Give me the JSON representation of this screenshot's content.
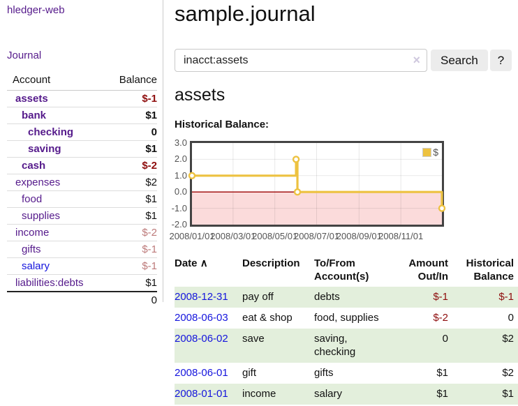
{
  "app": {
    "brand": "hledger-web",
    "nav_journal": "Journal"
  },
  "colors": {
    "link_purple": "#551a8b",
    "link_blue": "#1414dd",
    "negative": "#8e0d0d",
    "negative_muted": "#bd7a7a",
    "row_stripe_green": "#e3efdc",
    "accent_gold": "#edc240",
    "negative_band_pink": "#fbdbdb",
    "zero_line_red": "#9b0000",
    "tick_gray": "#545454"
  },
  "sidebar": {
    "columns": {
      "account": "Account",
      "balance": "Balance"
    },
    "accounts": [
      {
        "name": "assets",
        "level": 1,
        "bold": true,
        "link": "purple",
        "balance": "$-1",
        "balance_style": "neg-strong"
      },
      {
        "name": "bank",
        "level": 2,
        "bold": true,
        "link": "purple",
        "balance": "$1",
        "balance_style": "normal"
      },
      {
        "name": "checking",
        "level": 3,
        "bold": true,
        "link": "purple",
        "balance": "0",
        "balance_style": "normal"
      },
      {
        "name": "saving",
        "level": 3,
        "bold": true,
        "link": "purple",
        "balance": "$1",
        "balance_style": "normal"
      },
      {
        "name": "cash",
        "level": 2,
        "bold": true,
        "link": "purple",
        "balance": "$-2",
        "balance_style": "neg-strong"
      },
      {
        "name": "expenses",
        "level": 1,
        "bold": false,
        "link": "purple",
        "balance": "$2",
        "balance_style": "normal"
      },
      {
        "name": "food",
        "level": 2,
        "bold": false,
        "link": "purple",
        "balance": "$1",
        "balance_style": "normal"
      },
      {
        "name": "supplies",
        "level": 2,
        "bold": false,
        "link": "purple",
        "balance": "$1",
        "balance_style": "normal"
      },
      {
        "name": "income",
        "level": 1,
        "bold": false,
        "link": "purple",
        "balance": "$-2",
        "balance_style": "neg-muted"
      },
      {
        "name": "gifts",
        "level": 2,
        "bold": false,
        "link": "purple",
        "balance": "$-1",
        "balance_style": "neg-muted"
      },
      {
        "name": "salary",
        "level": 2,
        "bold": false,
        "link": "blue",
        "balance": "$-1",
        "balance_style": "neg-muted"
      },
      {
        "name": "liabilities:debts",
        "level": 1,
        "bold": false,
        "link": "purple",
        "balance": "$1",
        "balance_style": "normal"
      }
    ],
    "total": "0"
  },
  "header": {
    "title": "sample.journal"
  },
  "search": {
    "value": "inacct:assets",
    "clear_icon": "×",
    "button_label": "Search",
    "help_label": "?"
  },
  "account_page": {
    "heading": "assets",
    "chart_label": "Historical Balance:"
  },
  "chart_data": {
    "type": "line",
    "title": "Historical Balance:",
    "x_range": [
      "2008-01-01",
      "2008-12-31"
    ],
    "y_range": [
      -2,
      3
    ],
    "x_ticks": [
      "2008/01/01",
      "2008/03/01",
      "2008/05/01",
      "2008/07/01",
      "2008/09/01",
      "2008/11/01"
    ],
    "y_ticks": [
      "3.0",
      "2.0",
      "1.0",
      "0.0",
      "-1.0",
      "-2.0"
    ],
    "legend": {
      "label": "$",
      "position": "top-right"
    },
    "grid": true,
    "series": [
      {
        "name": "$",
        "step": true,
        "points": [
          {
            "x": "2008-01-01",
            "y": 1
          },
          {
            "x": "2008-06-01",
            "y": 2
          },
          {
            "x": "2008-06-03",
            "y": 0
          },
          {
            "x": "2008-12-31",
            "y": -1
          }
        ]
      }
    ]
  },
  "register": {
    "sort_icon": "∧",
    "headers": [
      "Date",
      "Description",
      "To/From\nAccount(s)",
      "Amount\nOut/In",
      "Historical\nBalance"
    ],
    "rows": [
      {
        "date": "2008-12-31",
        "description": "pay off",
        "accounts": "debts",
        "amount": "$-1",
        "amount_negative": true,
        "balance": "$-1",
        "balance_negative": true
      },
      {
        "date": "2008-06-03",
        "description": "eat & shop",
        "accounts": "food, supplies",
        "amount": "$-2",
        "amount_negative": true,
        "balance": "0",
        "balance_negative": false
      },
      {
        "date": "2008-06-02",
        "description": "save",
        "accounts": "saving,\nchecking",
        "amount": "0",
        "amount_negative": false,
        "balance": "$2",
        "balance_negative": false
      },
      {
        "date": "2008-06-01",
        "description": "gift",
        "accounts": "gifts",
        "amount": "$1",
        "amount_negative": false,
        "balance": "$2",
        "balance_negative": false
      },
      {
        "date": "2008-01-01",
        "description": "income",
        "accounts": "salary",
        "amount": "$1",
        "amount_negative": false,
        "balance": "$1",
        "balance_negative": false
      }
    ]
  }
}
